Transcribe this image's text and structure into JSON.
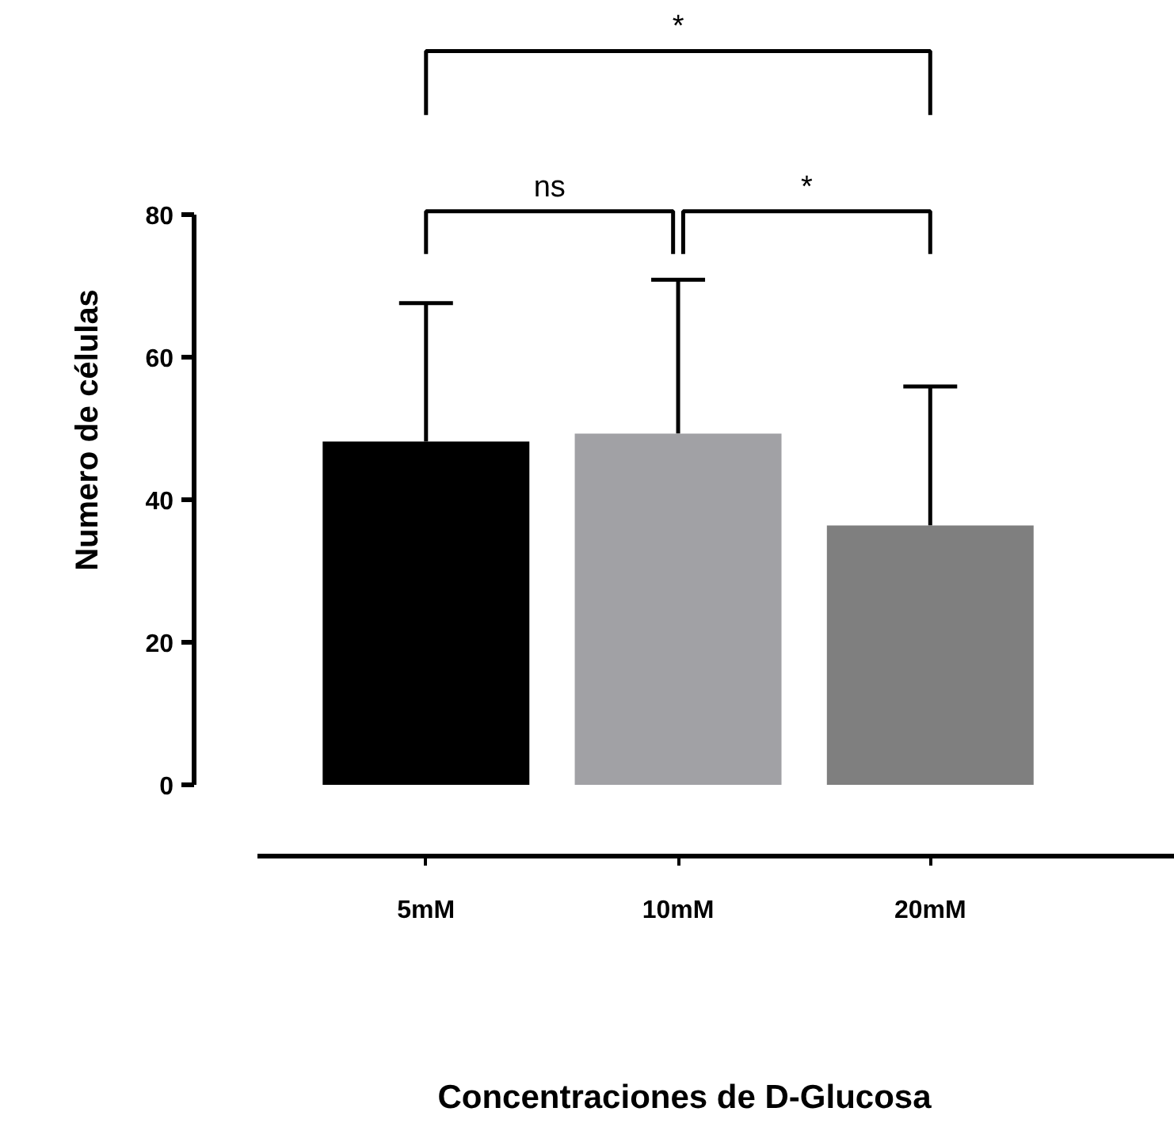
{
  "chart_data": {
    "type": "bar",
    "xlabel": "Concentraciones de D-Glucosa",
    "ylabel": "Numero de células",
    "categories": [
      "5mM",
      "10mM",
      "20mM"
    ],
    "values": [
      48.2,
      49.3,
      36.4
    ],
    "colors": [
      "#000000",
      "#a1a1a5",
      "#7f7f7f"
    ],
    "errors": [
      [
        48.2,
        67.6
      ],
      [
        49.3,
        70.9
      ],
      [
        36.4,
        55.9
      ]
    ],
    "ylim": [
      0,
      80
    ],
    "yticks": [
      0,
      20,
      40,
      60,
      80
    ],
    "grid": false,
    "annotations": [
      "*",
      "ns",
      "*"
    ]
  }
}
